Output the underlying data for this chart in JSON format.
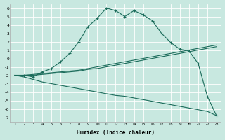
{
  "xlabel": "Humidex (Indice chaleur)",
  "bg_color": "#c8e8e0",
  "grid_color": "#ffffff",
  "line_color": "#1a6b5a",
  "ylim": [
    -7.5,
    6.5
  ],
  "xlim": [
    0.5,
    23.5
  ],
  "xticks": [
    1,
    2,
    3,
    4,
    5,
    6,
    7,
    8,
    9,
    10,
    11,
    12,
    13,
    14,
    15,
    16,
    17,
    18,
    19,
    20,
    21,
    22,
    23
  ],
  "yticks": [
    -7,
    -6,
    -5,
    -4,
    -3,
    -2,
    -1,
    0,
    1,
    2,
    3,
    4,
    5,
    6
  ],
  "line1_x": [
    2,
    3,
    4,
    5,
    6,
    7,
    8,
    9,
    10,
    11,
    12,
    13,
    14,
    15,
    16,
    17,
    18,
    19,
    20,
    21,
    22,
    23
  ],
  "line1_y": [
    -2.0,
    -2.2,
    -1.6,
    -1.2,
    -0.4,
    0.6,
    2.0,
    3.8,
    4.8,
    6.0,
    5.7,
    5.0,
    5.7,
    5.2,
    4.5,
    3.0,
    1.9,
    1.1,
    0.9,
    -0.6,
    -4.5,
    -6.8
  ],
  "line2_x": [
    1,
    2,
    3,
    4,
    5,
    6,
    7,
    8,
    9,
    10,
    11,
    12,
    13,
    14,
    15,
    16,
    17,
    18,
    19,
    20,
    21,
    22,
    23
  ],
  "line2_y": [
    -2.0,
    -2.0,
    -2.0,
    -1.9,
    -1.8,
    -1.7,
    -1.6,
    -1.5,
    -1.3,
    -1.2,
    -1.0,
    -0.8,
    -0.6,
    -0.4,
    -0.2,
    0.0,
    0.2,
    0.4,
    0.6,
    0.8,
    1.0,
    1.2,
    1.4
  ],
  "line3_x": [
    1,
    2,
    3,
    4,
    5,
    6,
    7,
    8,
    9,
    10,
    11,
    12,
    13,
    14,
    15,
    16,
    17,
    18,
    19,
    20,
    21,
    22,
    23
  ],
  "line3_y": [
    -2.0,
    -2.0,
    -1.9,
    -1.8,
    -1.7,
    -1.6,
    -1.5,
    -1.4,
    -1.2,
    -1.0,
    -0.8,
    -0.6,
    -0.4,
    -0.2,
    0.0,
    0.2,
    0.4,
    0.6,
    0.8,
    1.0,
    1.2,
    1.4,
    1.6
  ],
  "line4_x": [
    1,
    2,
    3,
    4,
    5,
    6,
    7,
    8,
    9,
    10,
    11,
    12,
    13,
    14,
    15,
    16,
    17,
    18,
    19,
    20,
    21,
    22,
    23
  ],
  "line4_y": [
    -2.0,
    -2.2,
    -2.5,
    -2.8,
    -3.0,
    -3.2,
    -3.4,
    -3.6,
    -3.8,
    -4.0,
    -4.2,
    -4.4,
    -4.5,
    -4.7,
    -4.9,
    -5.1,
    -5.3,
    -5.5,
    -5.7,
    -5.9,
    -6.1,
    -6.3,
    -6.8
  ]
}
